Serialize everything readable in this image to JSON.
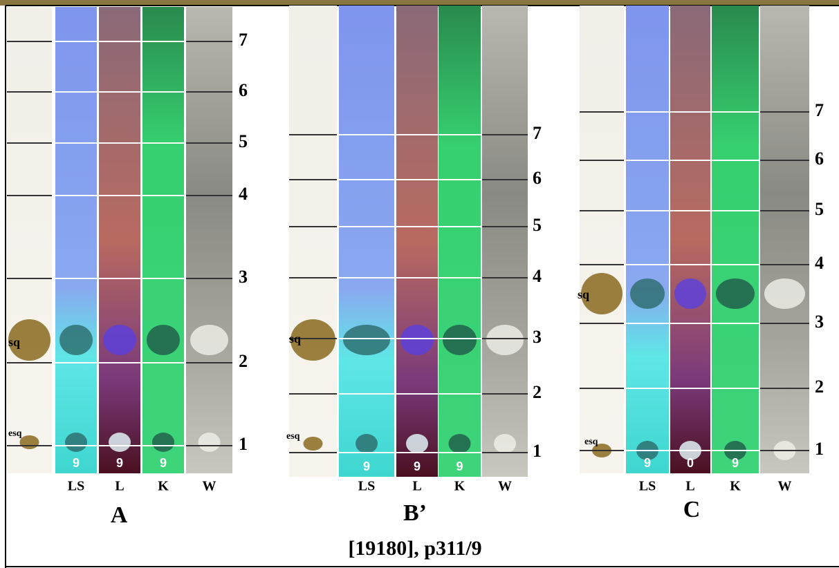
{
  "panels": [
    {
      "label": "A",
      "lanes": [
        "LS",
        "L",
        "K",
        "W"
      ],
      "bands": [
        7,
        6,
        5,
        4,
        3,
        2,
        1
      ],
      "spots": [
        "sq",
        "esq"
      ],
      "lane_marks": [
        "9",
        "9",
        "9"
      ]
    },
    {
      "label": "B’",
      "lanes": [
        "LS",
        "L",
        "K",
        "W"
      ],
      "bands": [
        7,
        6,
        5,
        4,
        3,
        2,
        1
      ],
      "spots": [
        "sq",
        "esq"
      ],
      "lane_marks": [
        "9",
        "9",
        "9"
      ]
    },
    {
      "label": "C",
      "lanes": [
        "LS",
        "L",
        "K",
        "W"
      ],
      "bands": [
        7,
        6,
        5,
        4,
        3,
        2,
        1
      ],
      "spots": [
        "sq",
        "esq"
      ],
      "lane_marks": [
        "9",
        "0",
        "9"
      ]
    }
  ],
  "caption": "[19180], p311/9"
}
